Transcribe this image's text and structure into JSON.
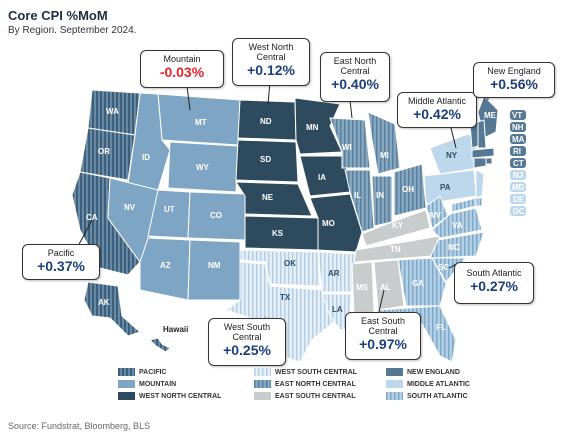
{
  "title": "Core CPI %MoM",
  "subtitle": "By Region. September 2024.",
  "source": "Source: Fundstrat, Bloomberg, BLS",
  "hawaii_label": "Hawaii",
  "colors": {
    "pacific": "#4d6e8a",
    "mountain": "#7ea6c4",
    "west_north_central": "#2e4a5e",
    "west_south_central": "#d5e6f2",
    "east_north_central": "#6f93ae",
    "east_south_central": "#c9cccd",
    "new_england": "#557894",
    "middle_atlantic": "#bdd7ec",
    "south_atlantic": "#9cbfda",
    "negative": "#e8232a",
    "positive": "#1c3f7a"
  },
  "callouts": [
    {
      "key": "mountain",
      "name": "Mountain",
      "value": "-0.03%"
    },
    {
      "key": "west_north_central",
      "name": "West North Central",
      "value": "+0.12%"
    },
    {
      "key": "east_north_central",
      "name": "East North Central",
      "value": "+0.40%"
    },
    {
      "key": "middle_atlantic",
      "name": "Middle Atlantic",
      "value": "+0.42%"
    },
    {
      "key": "new_england",
      "name": "New England",
      "value": "+0.56%"
    },
    {
      "key": "pacific",
      "name": "Pacific",
      "value": "+0.37%"
    },
    {
      "key": "south_atlantic",
      "name": "South Atlantic",
      "value": "+0.27%"
    },
    {
      "key": "west_south_central",
      "name": "West South Central",
      "value": "+0.25%"
    },
    {
      "key": "east_south_central",
      "name": "East South Central",
      "value": "+0.97%"
    }
  ],
  "legend": [
    {
      "key": "pacific",
      "label": "PACIFIC"
    },
    {
      "key": "mountain",
      "label": "MOUNTAIN"
    },
    {
      "key": "west_north_central",
      "label": "WEST NORTH CENTRAL"
    },
    {
      "key": "west_south_central",
      "label": "WEST SOUTH CENTRAL"
    },
    {
      "key": "east_north_central",
      "label": "EAST NORTH CENTRAL"
    },
    {
      "key": "east_south_central",
      "label": "EAST SOUTH CENTRAL"
    },
    {
      "key": "new_england",
      "label": "NEW ENGLAND"
    },
    {
      "key": "middle_atlantic",
      "label": "MIDDLE ATLANTIC"
    },
    {
      "key": "south_atlantic",
      "label": "SOUTH ATLANTIC"
    }
  ],
  "states": {
    "WA": "WA",
    "OR": "OR",
    "CA": "CA",
    "AK": "AK",
    "HI": "HI",
    "MT": "MT",
    "ID": "ID",
    "WY": "WY",
    "NV": "NV",
    "UT": "UT",
    "CO": "CO",
    "AZ": "AZ",
    "NM": "NM",
    "ND": "ND",
    "SD": "SD",
    "NE": "NE",
    "KS": "KS",
    "MN": "MN",
    "IA": "IA",
    "MO": "MO",
    "OK": "OK",
    "TX": "TX",
    "AR": "AR",
    "LA": "LA",
    "WI": "WI",
    "MI": "MI",
    "IL": "IL",
    "IN": "IN",
    "OH": "OH",
    "KY": "KY",
    "TN": "TN",
    "MS": "MS",
    "AL": "AL",
    "NY": "NY",
    "PA": "PA",
    "NJ": "NJ",
    "ME": "ME",
    "VT": "VT",
    "NH": "NH",
    "MA": "MA",
    "RI": "RI",
    "CT": "CT",
    "DE": "DE",
    "MD": "MD",
    "DC": "DC",
    "WV": "WV",
    "VA": "VA",
    "NC": "NC",
    "SC": "SC",
    "GA": "GA",
    "FL": "FL"
  }
}
